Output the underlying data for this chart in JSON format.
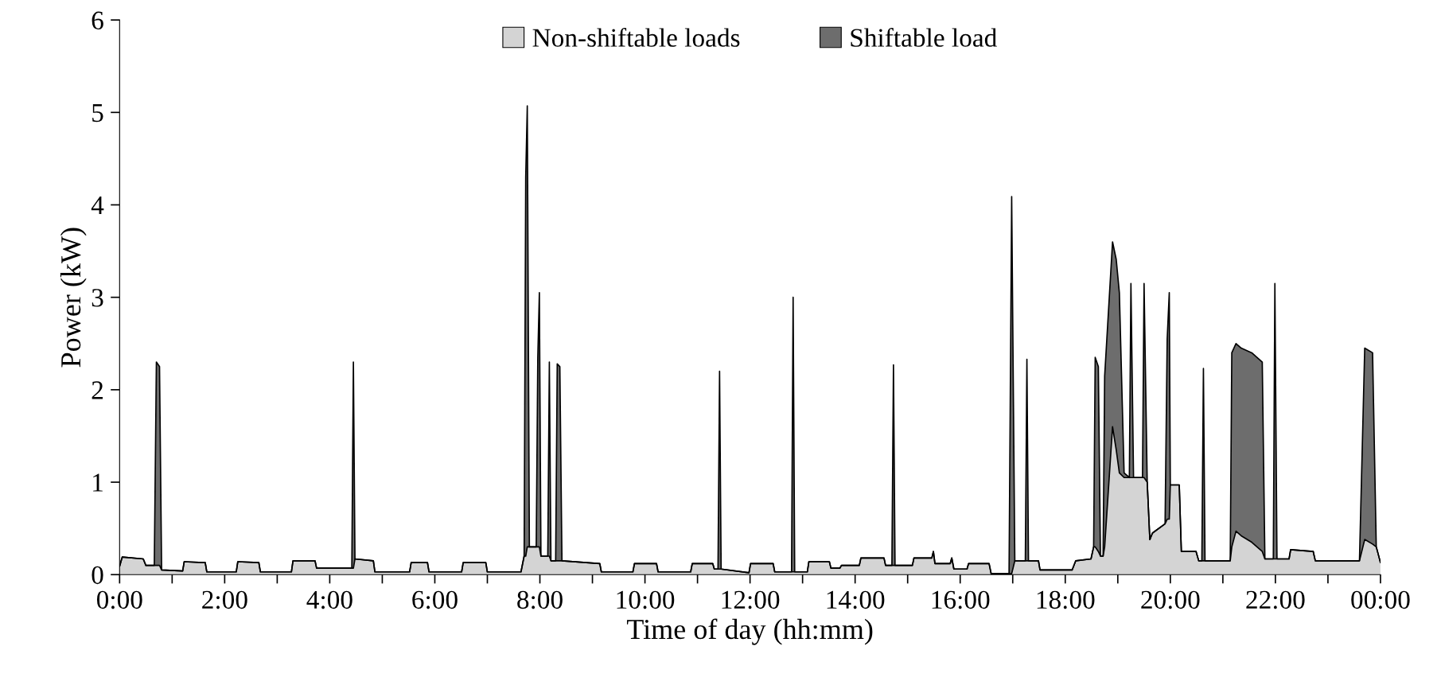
{
  "chart_data": {
    "type": "area",
    "stacked": true,
    "xlabel": "Time of day (hh:mm)",
    "ylabel": "Power (kW)",
    "x": [
      0.0,
      0.05,
      0.45,
      0.5,
      0.66,
      0.7,
      0.76,
      0.8,
      1.2,
      1.23,
      1.63,
      1.66,
      2.22,
      2.25,
      2.65,
      2.68,
      3.27,
      3.3,
      3.72,
      3.75,
      4.42,
      4.45,
      4.48,
      4.83,
      4.86,
      5.52,
      5.55,
      5.86,
      5.89,
      6.51,
      6.54,
      6.97,
      7.0,
      7.64,
      7.7,
      7.73,
      7.76,
      7.8,
      7.93,
      7.96,
      7.99,
      8.02,
      8.15,
      8.18,
      8.21,
      8.3,
      8.33,
      8.38,
      8.42,
      9.14,
      9.17,
      9.77,
      9.8,
      10.22,
      10.25,
      10.87,
      10.9,
      11.29,
      11.32,
      11.39,
      11.42,
      11.45,
      11.98,
      12.01,
      12.44,
      12.47,
      12.79,
      12.82,
      12.85,
      13.09,
      13.12,
      13.51,
      13.54,
      13.71,
      13.74,
      14.08,
      14.11,
      14.55,
      14.58,
      14.7,
      14.73,
      14.76,
      15.09,
      15.12,
      15.46,
      15.49,
      15.52,
      15.81,
      15.84,
      15.88,
      16.13,
      16.16,
      16.55,
      16.59,
      16.93,
      16.98,
      17.04,
      17.24,
      17.27,
      17.3,
      17.49,
      17.52,
      18.13,
      18.2,
      18.49,
      18.54,
      18.57,
      18.63,
      18.67,
      18.72,
      18.75,
      18.9,
      18.97,
      19.03,
      19.12,
      19.22,
      19.25,
      19.3,
      19.47,
      19.5,
      19.56,
      19.61,
      19.66,
      19.9,
      19.94,
      19.98,
      20.0,
      20.17,
      20.21,
      20.49,
      20.54,
      20.6,
      20.63,
      20.66,
      21.14,
      21.17,
      21.25,
      21.35,
      21.55,
      21.75,
      21.8,
      21.96,
      21.99,
      22.03,
      22.26,
      22.29,
      22.72,
      22.76,
      23.6,
      23.7,
      23.85,
      23.92,
      24.0
    ],
    "series": [
      {
        "name": "Non-shiftable loads",
        "color": "#d4d4d4",
        "values": [
          0.09,
          0.19,
          0.17,
          0.1,
          0.1,
          0.1,
          0.1,
          0.05,
          0.04,
          0.14,
          0.13,
          0.03,
          0.03,
          0.14,
          0.13,
          0.03,
          0.03,
          0.15,
          0.15,
          0.07,
          0.07,
          0.07,
          0.17,
          0.15,
          0.03,
          0.03,
          0.13,
          0.13,
          0.03,
          0.03,
          0.13,
          0.13,
          0.03,
          0.03,
          0.2,
          0.2,
          0.3,
          0.3,
          0.3,
          0.3,
          0.3,
          0.2,
          0.2,
          0.2,
          0.15,
          0.15,
          0.15,
          0.15,
          0.15,
          0.12,
          0.03,
          0.03,
          0.12,
          0.12,
          0.03,
          0.03,
          0.12,
          0.12,
          0.06,
          0.06,
          0.06,
          0.06,
          0.02,
          0.12,
          0.12,
          0.03,
          0.03,
          0.03,
          0.03,
          0.03,
          0.14,
          0.14,
          0.07,
          0.07,
          0.1,
          0.1,
          0.18,
          0.18,
          0.1,
          0.1,
          0.1,
          0.1,
          0.1,
          0.18,
          0.18,
          0.25,
          0.12,
          0.12,
          0.18,
          0.06,
          0.06,
          0.12,
          0.12,
          0.01,
          0.01,
          0.01,
          0.15,
          0.15,
          0.15,
          0.15,
          0.15,
          0.05,
          0.05,
          0.15,
          0.17,
          0.3,
          0.3,
          0.25,
          0.2,
          0.2,
          0.3,
          1.6,
          1.35,
          1.1,
          1.05,
          1.05,
          1.05,
          1.05,
          1.05,
          1.05,
          1.0,
          0.38,
          0.45,
          0.55,
          0.6,
          0.6,
          0.97,
          0.97,
          0.25,
          0.25,
          0.15,
          0.15,
          0.15,
          0.15,
          0.15,
          0.3,
          0.47,
          0.42,
          0.35,
          0.25,
          0.17,
          0.17,
          0.17,
          0.17,
          0.17,
          0.27,
          0.25,
          0.15,
          0.15,
          0.38,
          0.33,
          0.3,
          0.13
        ]
      },
      {
        "name": "Shiftable load",
        "color": "#6d6d6d",
        "values": [
          0,
          0,
          0,
          0,
          0,
          2.2,
          2.15,
          0,
          0,
          0,
          0,
          0,
          0,
          0,
          0,
          0,
          0,
          0,
          0,
          0,
          0,
          2.23,
          0,
          0,
          0,
          0,
          0,
          0,
          0,
          0,
          0,
          0,
          0,
          0,
          0,
          4.1,
          4.77,
          0,
          0,
          2.05,
          2.75,
          0,
          0,
          2.1,
          0,
          0,
          2.13,
          2.1,
          0,
          0,
          0,
          0,
          0,
          0,
          0,
          0,
          0,
          0,
          0,
          0,
          2.14,
          0,
          0,
          0,
          0,
          0,
          0,
          2.97,
          0,
          0,
          0,
          0,
          0,
          0,
          0,
          0,
          0,
          0,
          0,
          0,
          2.17,
          0,
          0,
          0,
          0,
          0,
          0,
          0,
          0,
          0,
          0,
          0,
          0,
          0,
          0,
          4.08,
          0,
          0,
          2.18,
          0,
          0,
          0,
          0,
          0,
          0,
          0,
          2.05,
          2.0,
          0,
          0,
          1.85,
          2.0,
          2.06,
          1.95,
          0.05,
          0,
          2.1,
          0,
          0,
          2.1,
          0,
          0,
          0,
          0,
          1.95,
          2.45,
          0,
          0,
          0,
          0,
          0,
          0,
          2.08,
          0,
          0,
          2.1,
          2.03,
          2.03,
          2.05,
          2.05,
          0,
          0,
          2.98,
          0,
          0,
          0,
          0,
          0,
          0,
          2.07,
          2.07,
          0,
          0
        ]
      }
    ],
    "xlim": [
      0,
      24
    ],
    "xticks": [
      {
        "value": 0,
        "label": "0:00"
      },
      {
        "value": 1,
        "label": null
      },
      {
        "value": 2,
        "label": "2:00"
      },
      {
        "value": 3,
        "label": null
      },
      {
        "value": 4,
        "label": "4:00"
      },
      {
        "value": 5,
        "label": null
      },
      {
        "value": 6,
        "label": "6:00"
      },
      {
        "value": 7,
        "label": null
      },
      {
        "value": 8,
        "label": "8:00"
      },
      {
        "value": 9,
        "label": null
      },
      {
        "value": 10,
        "label": "10:00"
      },
      {
        "value": 11,
        "label": null
      },
      {
        "value": 12,
        "label": "12:00"
      },
      {
        "value": 13,
        "label": null
      },
      {
        "value": 14,
        "label": "14:00"
      },
      {
        "value": 15,
        "label": null
      },
      {
        "value": 16,
        "label": "16:00"
      },
      {
        "value": 17,
        "label": null
      },
      {
        "value": 18,
        "label": "18:00"
      },
      {
        "value": 19,
        "label": null
      },
      {
        "value": 20,
        "label": "20:00"
      },
      {
        "value": 21,
        "label": null
      },
      {
        "value": 22,
        "label": "22:00"
      },
      {
        "value": 23,
        "label": null
      },
      {
        "value": 24,
        "label": "00:00"
      }
    ],
    "ylim": [
      0,
      6
    ],
    "yticks": [
      0,
      1,
      2,
      3,
      4,
      5,
      6
    ],
    "legend": "top"
  }
}
